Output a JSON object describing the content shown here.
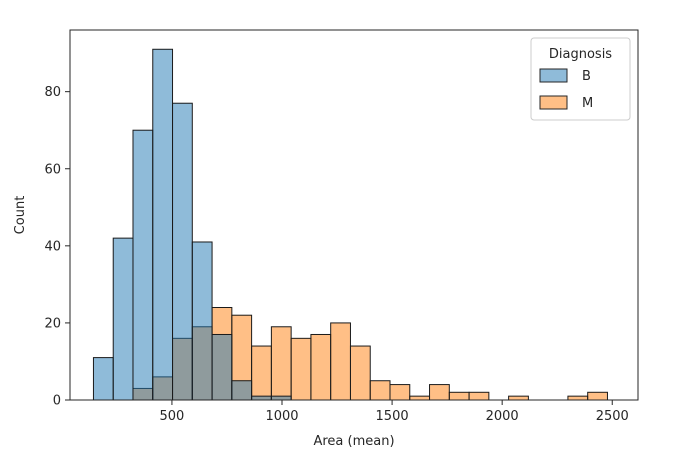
{
  "chart_data": {
    "type": "bar",
    "subtype": "histogram-overlay",
    "title": "",
    "xlabel": "Area (mean)",
    "ylabel": "Count",
    "xlim": [
      37,
      2617
    ],
    "ylim": [
      0,
      96
    ],
    "bin_width": 89.8,
    "bin_starts": [
      143.5,
      233.3,
      323.1,
      412.9,
      502.7,
      592.5,
      682.3,
      772.1,
      861.9,
      951.7,
      1041.5,
      1131.3,
      1221.1,
      1310.9,
      1400.7,
      1490.5,
      1580.3,
      1670.1,
      1759.9,
      1849.7,
      1939.5,
      2029.3,
      2119.1,
      2208.9,
      2298.7,
      2388.5
    ],
    "x_ticks": [
      500,
      1000,
      1500,
      2000,
      2500
    ],
    "x_tick_labels": [
      "500",
      "1000",
      "1500",
      "2000",
      "2500"
    ],
    "y_ticks": [
      0,
      20,
      40,
      60,
      80
    ],
    "y_tick_labels": [
      "0",
      "20",
      "40",
      "60",
      "80"
    ],
    "series": [
      {
        "name": "B",
        "color": "#1f77b4",
        "values": [
          11,
          42,
          70,
          91,
          77,
          41,
          17,
          5,
          1,
          1,
          0,
          0,
          0,
          0,
          0,
          0,
          0,
          0,
          0,
          0,
          0,
          0,
          0,
          0,
          0,
          0
        ]
      },
      {
        "name": "M",
        "color": "#ff7f0e",
        "values": [
          0,
          0,
          3,
          6,
          16,
          19,
          24,
          22,
          14,
          19,
          16,
          17,
          20,
          14,
          5,
          4,
          1,
          4,
          2,
          2,
          0,
          1,
          0,
          0,
          1,
          2
        ]
      }
    ],
    "legend": {
      "title": "Diagnosis",
      "placement": "top-right",
      "entries": [
        "B",
        "M"
      ]
    },
    "grid": false
  }
}
